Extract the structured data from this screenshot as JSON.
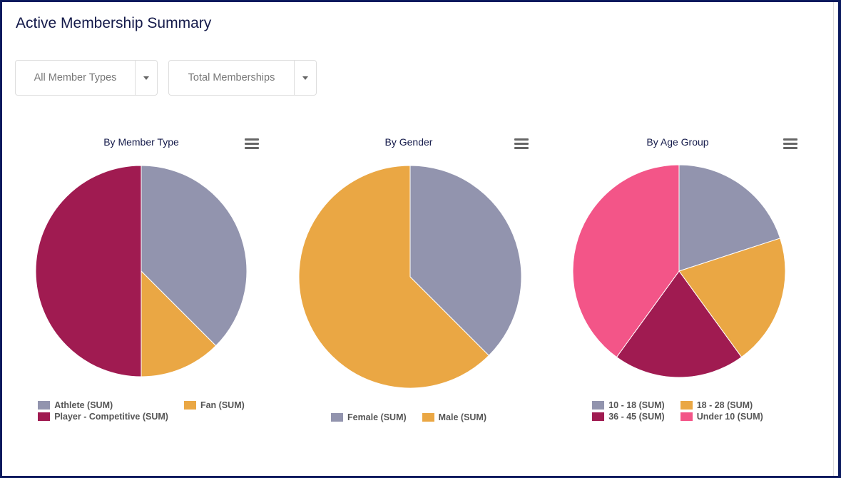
{
  "title": "Active Membership Summary",
  "filters": [
    {
      "value": "All Member Types"
    },
    {
      "value": "Total Memberships"
    }
  ],
  "chart_data": [
    {
      "type": "pie",
      "title": "By Member Type",
      "categories": [
        "Athlete (SUM)",
        "Fan (SUM)",
        "Player - Competitive (SUM)"
      ],
      "values": [
        37.5,
        12.5,
        50
      ],
      "colors": [
        "#9294ae",
        "#eaa744",
        "#a01b51"
      ]
    },
    {
      "type": "pie",
      "title": "By Gender",
      "categories": [
        "Female (SUM)",
        "Male (SUM)"
      ],
      "values": [
        37.5,
        62.5
      ],
      "colors": [
        "#9294ae",
        "#eaa744"
      ]
    },
    {
      "type": "pie",
      "title": "By Age Group",
      "categories": [
        "10 - 18 (SUM)",
        "18 - 28 (SUM)",
        "36 - 45 (SUM)",
        "Under 10 (SUM)"
      ],
      "values": [
        20,
        20,
        20,
        40
      ],
      "colors": [
        "#9294ae",
        "#eaa744",
        "#a01b51",
        "#f35588"
      ]
    }
  ]
}
